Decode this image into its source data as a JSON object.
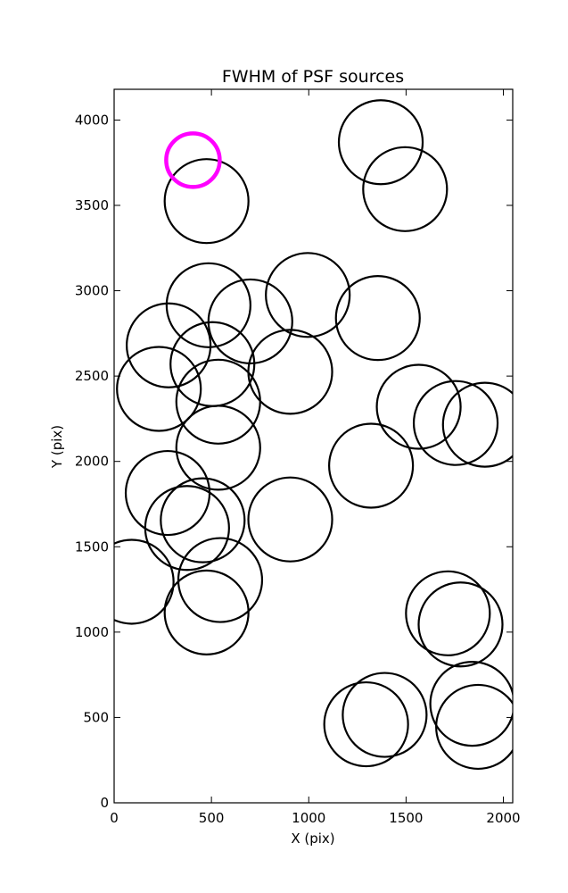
{
  "chart_data": {
    "type": "scatter",
    "title": "FWHM of PSF sources",
    "xlabel": "X (pix)",
    "ylabel": "Y (pix)",
    "xlim": [
      0,
      2048
    ],
    "ylim": [
      0,
      4180
    ],
    "xticks": [
      0,
      500,
      1000,
      1500,
      2000
    ],
    "yticks": [
      0,
      500,
      1000,
      1500,
      2000,
      2500,
      3000,
      3500,
      4000
    ],
    "grid": false,
    "marker": "open circle",
    "colors": {
      "default": "#000000",
      "highlight": "#ff00ff"
    },
    "points": [
      {
        "x": 1370,
        "y": 3870
      },
      {
        "x": 1495,
        "y": 3595
      },
      {
        "x": 475,
        "y": 3525
      },
      {
        "x": 485,
        "y": 2915
      },
      {
        "x": 700,
        "y": 2820
      },
      {
        "x": 995,
        "y": 2975
      },
      {
        "x": 1355,
        "y": 2840
      },
      {
        "x": 280,
        "y": 2680
      },
      {
        "x": 505,
        "y": 2570
      },
      {
        "x": 905,
        "y": 2525
      },
      {
        "x": 230,
        "y": 2425
      },
      {
        "x": 535,
        "y": 2350
      },
      {
        "x": 1565,
        "y": 2320
      },
      {
        "x": 1755,
        "y": 2225
      },
      {
        "x": 1905,
        "y": 2215
      },
      {
        "x": 535,
        "y": 2080
      },
      {
        "x": 1320,
        "y": 1975
      },
      {
        "x": 275,
        "y": 1815
      },
      {
        "x": 455,
        "y": 1655
      },
      {
        "x": 375,
        "y": 1610
      },
      {
        "x": 905,
        "y": 1660
      },
      {
        "x": 90,
        "y": 1295
      },
      {
        "x": 545,
        "y": 1305
      },
      {
        "x": 475,
        "y": 1115
      },
      {
        "x": 1715,
        "y": 1110
      },
      {
        "x": 1780,
        "y": 1045
      },
      {
        "x": 1390,
        "y": 515
      },
      {
        "x": 1295,
        "y": 460
      },
      {
        "x": 1840,
        "y": 580
      },
      {
        "x": 1870,
        "y": 445
      }
    ],
    "highlight_point": {
      "x": 405,
      "y": 3765
    }
  }
}
